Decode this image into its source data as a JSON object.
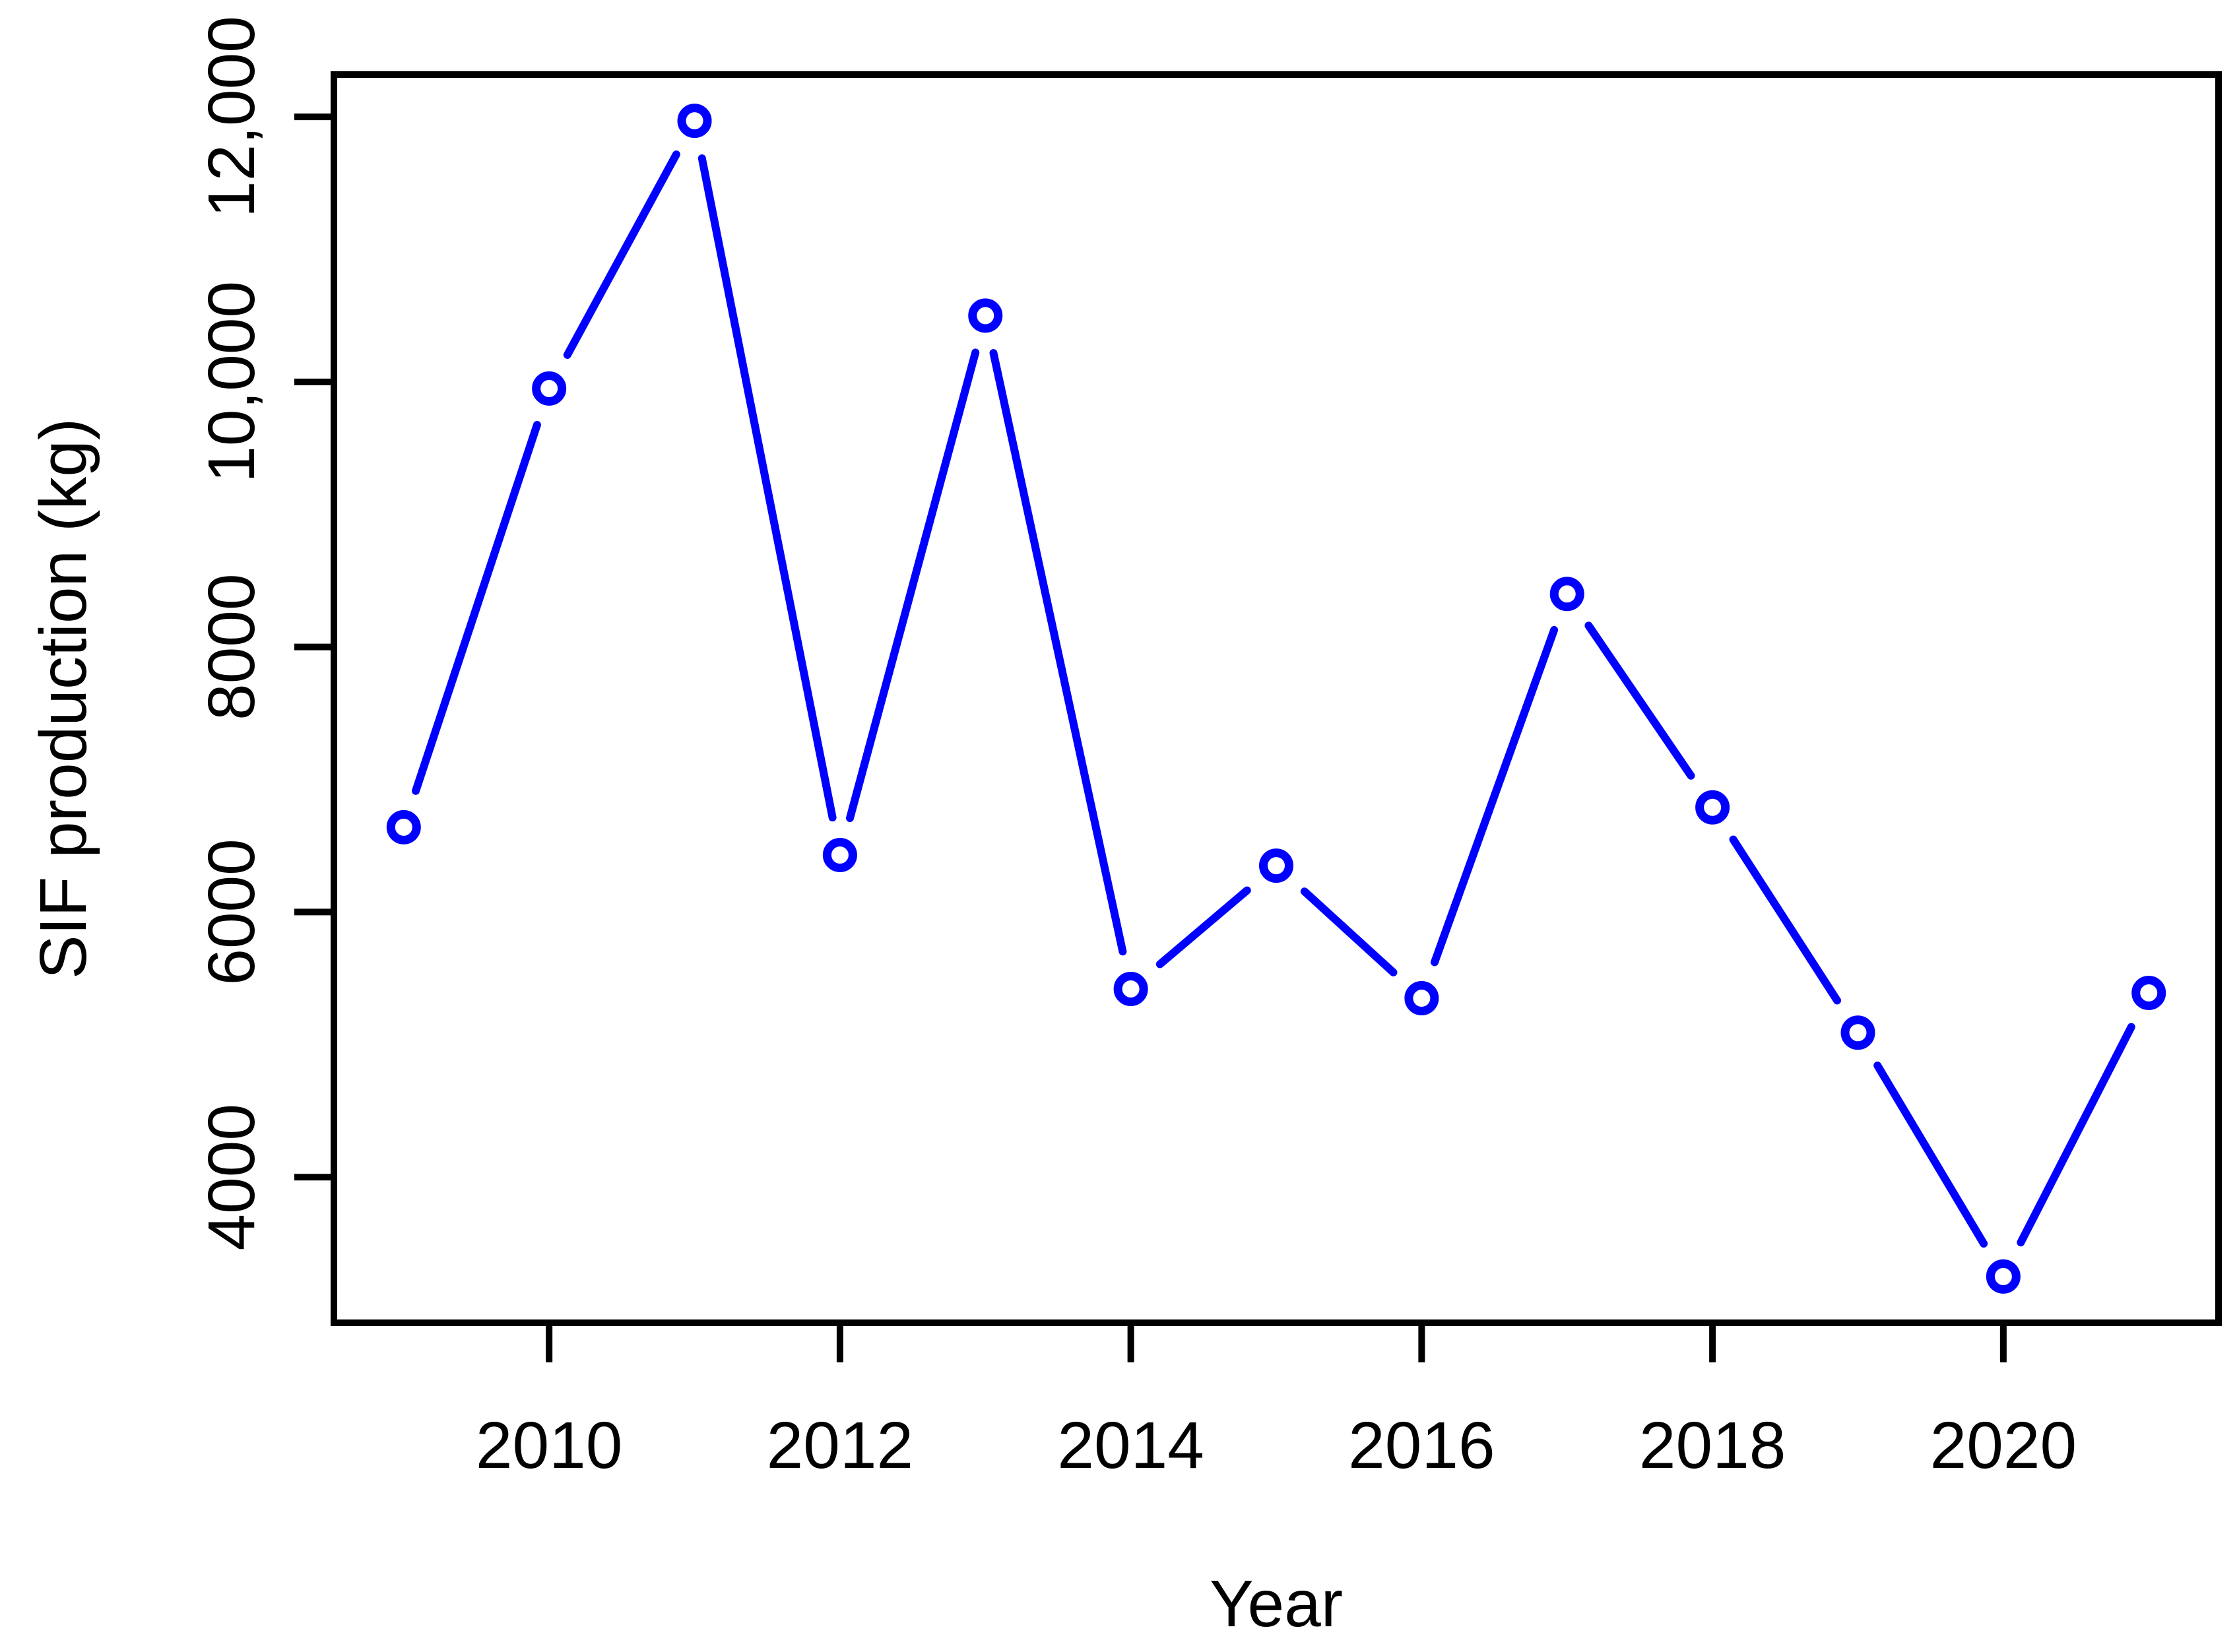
{
  "chart_data": {
    "type": "line",
    "title": "",
    "xlabel": "Year",
    "ylabel": "SIF production (kg)",
    "series": [
      {
        "name": "SIF production (kg)",
        "x": [
          2009,
          2010,
          2011,
          2012,
          2013,
          2014,
          2015,
          2016,
          2017,
          2018,
          2019,
          2020,
          2021
        ],
        "values": [
          6640,
          9950,
          11970,
          6430,
          10500,
          5420,
          6350,
          5350,
          8400,
          6790,
          5090,
          3250,
          5390
        ]
      }
    ],
    "xlim": [
      2008.52,
      2021.48
    ],
    "ylim": [
      2901,
      12319
    ],
    "x_tick_values": [
      2010,
      2012,
      2014,
      2016,
      2018,
      2020
    ],
    "x_tick_labels": [
      "2010",
      "2012",
      "2014",
      "2016",
      "2018",
      "2020"
    ],
    "y_tick_values": [
      4000,
      6000,
      8000,
      10000,
      12000
    ],
    "y_tick_labels": [
      "4000",
      "6000",
      "8000",
      "10,000",
      "12,000"
    ],
    "grid": false,
    "legend_position": "none",
    "marker_style": "open-circle",
    "line_color": "#0000FF",
    "axis_color": "#000000",
    "background_color": "#FFFFFF"
  }
}
